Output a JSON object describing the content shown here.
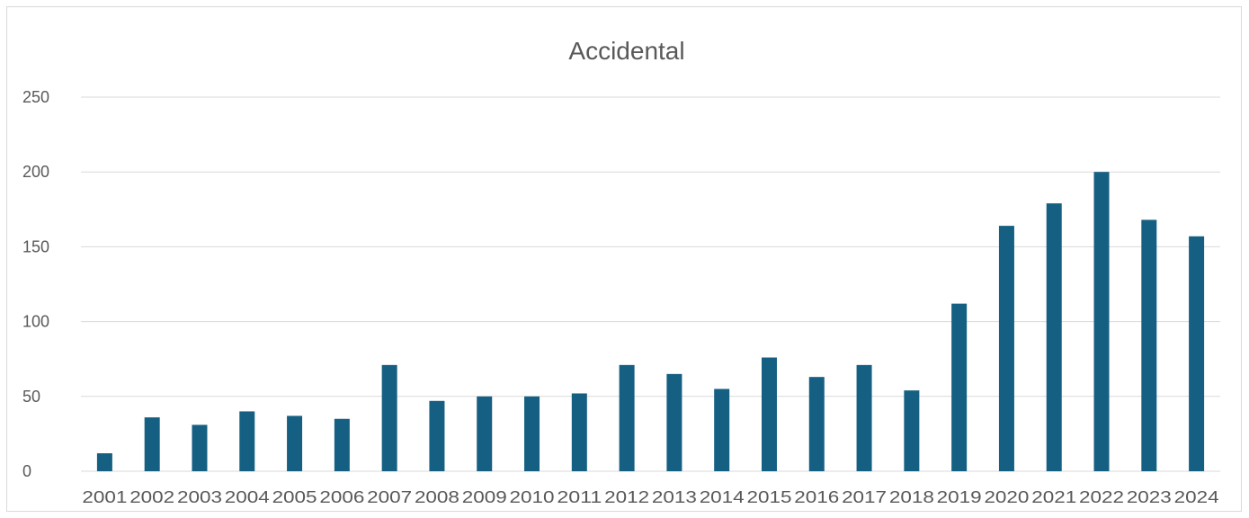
{
  "chart_data": {
    "type": "bar",
    "title": "Accidental",
    "xlabel": "",
    "ylabel": "",
    "categories": [
      "2001",
      "2002",
      "2003",
      "2004",
      "2005",
      "2006",
      "2007",
      "2008",
      "2009",
      "2010",
      "2011",
      "2012",
      "2013",
      "2014",
      "2015",
      "2016",
      "2017",
      "2018",
      "2019",
      "2020",
      "2021",
      "2022",
      "2023",
      "2024"
    ],
    "values": [
      12,
      36,
      31,
      40,
      37,
      35,
      71,
      47,
      50,
      50,
      52,
      71,
      65,
      55,
      76,
      63,
      71,
      54,
      112,
      164,
      179,
      200,
      168,
      157
    ],
    "ylim": [
      0,
      250
    ],
    "yticks": [
      0,
      50,
      100,
      150,
      200,
      250
    ],
    "grid": true,
    "legend": "none",
    "colors": {
      "bar": "#156082",
      "grid": "#d9d9d9",
      "text": "#595959"
    }
  }
}
